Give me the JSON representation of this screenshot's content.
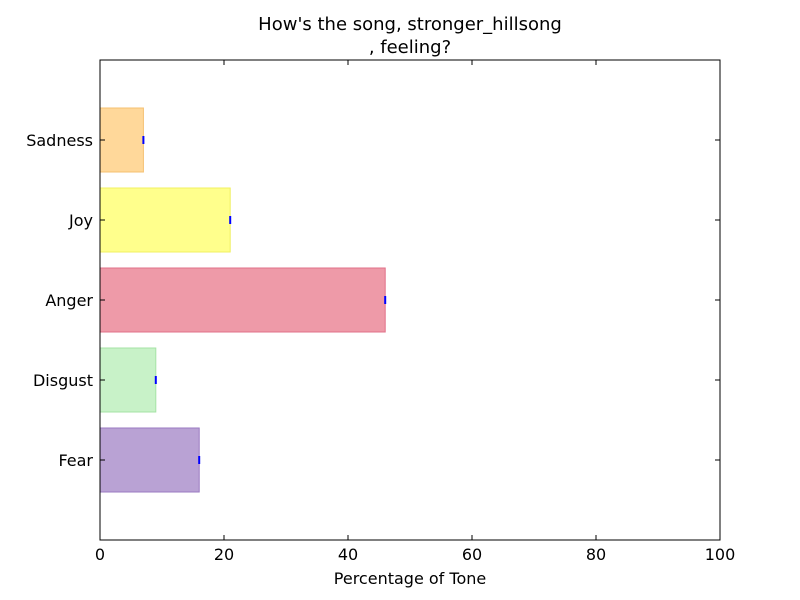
{
  "chart_data": {
    "type": "bar",
    "orientation": "horizontal",
    "title_lines": [
      "How's the song, stronger_hillsong",
      ", feeling?"
    ],
    "xlabel": "Percentage of Tone",
    "ylabel": "",
    "xlim": [
      0,
      100
    ],
    "x_ticks": [
      0,
      20,
      40,
      60,
      80,
      100
    ],
    "categories": [
      "Fear",
      "Disgust",
      "Anger",
      "Joy",
      "Sadness"
    ],
    "values": [
      16,
      9,
      46,
      21,
      7
    ],
    "bar_colors": [
      "#b9a2d4",
      "#c8f2c8",
      "#ee9aa8",
      "#ffff8c",
      "#ffd89a"
    ],
    "bar_edge_colors": [
      "#9a79c2",
      "#a5e3a5",
      "#e07088",
      "#f0f060",
      "#f5c070"
    ],
    "error_marker_color": "#0000ff",
    "grid": false,
    "legend": "none"
  }
}
